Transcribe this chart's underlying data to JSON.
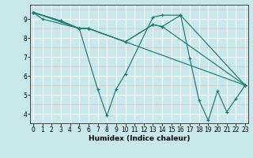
{
  "xlabel": "Humidex (Indice chaleur)",
  "xlim": [
    -0.3,
    23.3
  ],
  "ylim": [
    3.5,
    9.75
  ],
  "xticks": [
    0,
    1,
    2,
    3,
    4,
    5,
    6,
    7,
    8,
    9,
    10,
    11,
    12,
    13,
    14,
    15,
    16,
    17,
    18,
    19,
    20,
    21,
    22,
    23
  ],
  "yticks": [
    4,
    5,
    6,
    7,
    8,
    9
  ],
  "background_color": "#c8e8ec",
  "grid_color_white": "#ffffff",
  "grid_color_pink": "#e8c0c0",
  "line_color": "#1e7a70",
  "lines": [
    {
      "x": [
        0,
        1,
        5,
        7,
        8,
        9,
        10,
        13,
        14,
        16,
        17,
        18,
        19,
        20,
        21,
        22,
        23
      ],
      "y": [
        9.35,
        9.0,
        8.5,
        5.3,
        3.9,
        5.3,
        6.1,
        9.1,
        9.2,
        9.2,
        6.9,
        4.7,
        3.65,
        5.2,
        4.1,
        4.8,
        5.5
      ]
    },
    {
      "x": [
        0,
        3,
        5,
        6,
        23
      ],
      "y": [
        9.35,
        8.9,
        8.5,
        8.5,
        5.5
      ]
    },
    {
      "x": [
        0,
        3,
        5,
        6,
        10,
        13,
        14,
        23
      ],
      "y": [
        9.35,
        8.9,
        8.5,
        8.5,
        7.8,
        8.7,
        8.6,
        5.5
      ]
    },
    {
      "x": [
        0,
        5,
        6,
        10,
        13,
        14,
        16,
        23
      ],
      "y": [
        9.35,
        8.5,
        8.5,
        7.8,
        8.7,
        8.6,
        9.2,
        5.5
      ]
    }
  ]
}
